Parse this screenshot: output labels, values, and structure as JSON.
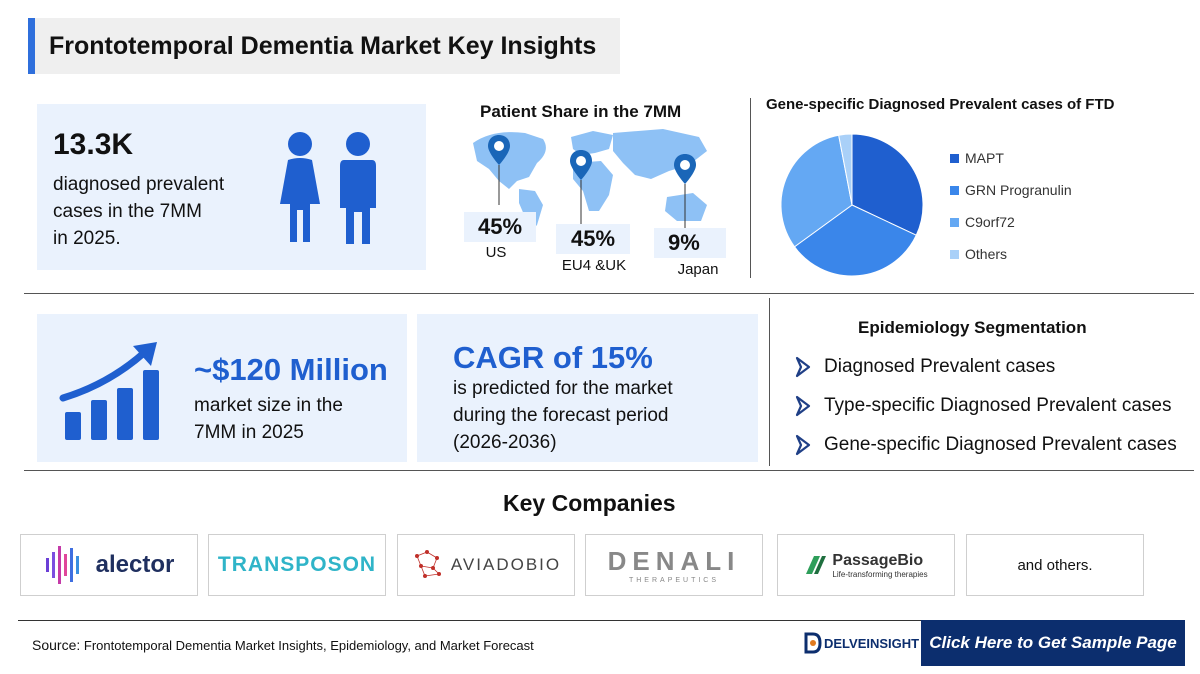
{
  "title": "Frontotemporal Dementia Market Key Insights",
  "prevalence": {
    "value": "13.3K",
    "line1": "diagnosed prevalent",
    "line2": "cases in the 7MM",
    "line3": "in 2025."
  },
  "patient_share": {
    "title": "Patient Share in the 7MM",
    "regions": [
      {
        "value": "45%",
        "label": "US"
      },
      {
        "value": "45%",
        "label": "EU4 &UK"
      },
      {
        "value": "9%",
        "label": "Japan"
      }
    ]
  },
  "gene_chart": {
    "title": "Gene-specific Diagnosed Prevalent cases of FTD",
    "legend": [
      "MAPT",
      "GRN Progranulin",
      "C9orf72",
      "Others"
    ]
  },
  "chart_data": {
    "type": "pie",
    "title": "Gene-specific Diagnosed Prevalent cases of FTD",
    "categories": [
      "MAPT",
      "GRN Progranulin",
      "C9orf72",
      "Others"
    ],
    "values": [
      32,
      33,
      32,
      3
    ],
    "colors": [
      "#1f5fcf",
      "#3a86ea",
      "#64a8f3",
      "#a9d0f8"
    ],
    "legend_position": "right"
  },
  "market": {
    "value": "~$120 Million",
    "line1": "market size in the",
    "line2": "7MM in 2025"
  },
  "cagr": {
    "value": "CAGR of 15%",
    "line1": "is predicted for the market",
    "line2": "during the forecast period",
    "line3": "(2026-2036)"
  },
  "epidemiology": {
    "title": "Epidemiology Segmentation",
    "items": [
      "Diagnosed Prevalent cases",
      "Type-specific Diagnosed Prevalent cases",
      "Gene-specific Diagnosed Prevalent cases"
    ]
  },
  "companies": {
    "title": "Key Companies",
    "logos": [
      "alector",
      "TRANSPOSON",
      "AVIADOBIO",
      "DENALI",
      "THERAPEUTICS",
      "PassageBio",
      "Life-transforming therapies"
    ],
    "others": "and others."
  },
  "footer": {
    "source_label": "Source:",
    "source_text": "Frontotemporal Dementia Market Insights, Epidemiology, and Market Forecast",
    "brand": "DELVEINSIGHT",
    "cta": "Click Here to Get Sample Page"
  },
  "colors": {
    "accent": "#2f6fdc",
    "card_bg": "#eaf2fd",
    "icon_blue": "#1f5fcf",
    "cta_bg": "#0c2e6e"
  }
}
